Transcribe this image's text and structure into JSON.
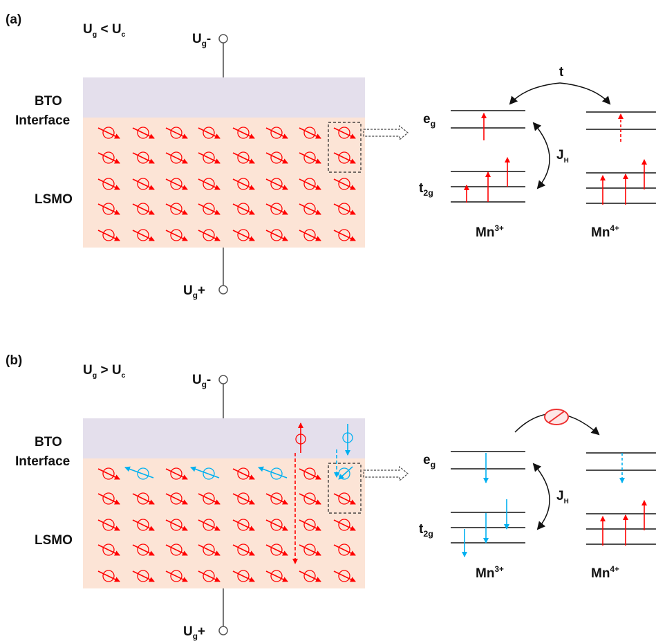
{
  "panels": [
    {
      "label": "(a)",
      "condition": [
        {
          "text": "U"
        },
        {
          "sub": "g"
        },
        {
          "text": " < U"
        },
        {
          "sub": "c"
        }
      ],
      "top_terminal": [
        {
          "text": "U"
        },
        {
          "sub": "g"
        },
        {
          "text": "-"
        }
      ],
      "bottom_terminal": [
        {
          "text": "U"
        },
        {
          "sub": "g"
        },
        {
          "text": "+"
        }
      ],
      "layers": [
        "BTO",
        "Interface",
        "LSMO"
      ],
      "hopping": "t",
      "eg": [
        {
          "text": "e"
        },
        {
          "sub": "g"
        }
      ],
      "t2g": [
        {
          "text": "t"
        },
        {
          "sub": "2g"
        }
      ],
      "hund": [
        {
          "text": "J"
        },
        {
          "sub": "H"
        }
      ],
      "ion1": [
        {
          "text": "Mn"
        },
        {
          "sup": "3+"
        }
      ],
      "ion2": [
        {
          "text": "Mn"
        },
        {
          "sup": "4+"
        }
      ]
    },
    {
      "label": "(b)",
      "condition": [
        {
          "text": "U"
        },
        {
          "sub": "g"
        },
        {
          "text": " > U"
        },
        {
          "sub": "c"
        }
      ],
      "top_terminal": [
        {
          "text": "U"
        },
        {
          "sub": "g"
        },
        {
          "text": "-"
        }
      ],
      "bottom_terminal": [
        {
          "text": "U"
        },
        {
          "sub": "g"
        },
        {
          "text": "+"
        }
      ],
      "layers": [
        "BTO",
        "Interface",
        "LSMO"
      ],
      "eg": [
        {
          "text": "e"
        },
        {
          "sub": "g"
        }
      ],
      "t2g": [
        {
          "text": "t"
        },
        {
          "sub": "2g"
        }
      ],
      "hund": [
        {
          "text": "J"
        },
        {
          "sub": "H"
        }
      ],
      "ion1": [
        {
          "text": "Mn"
        },
        {
          "sup": "3+"
        }
      ],
      "ion2": [
        {
          "text": "Mn"
        },
        {
          "sup": "4+"
        }
      ]
    }
  ]
}
